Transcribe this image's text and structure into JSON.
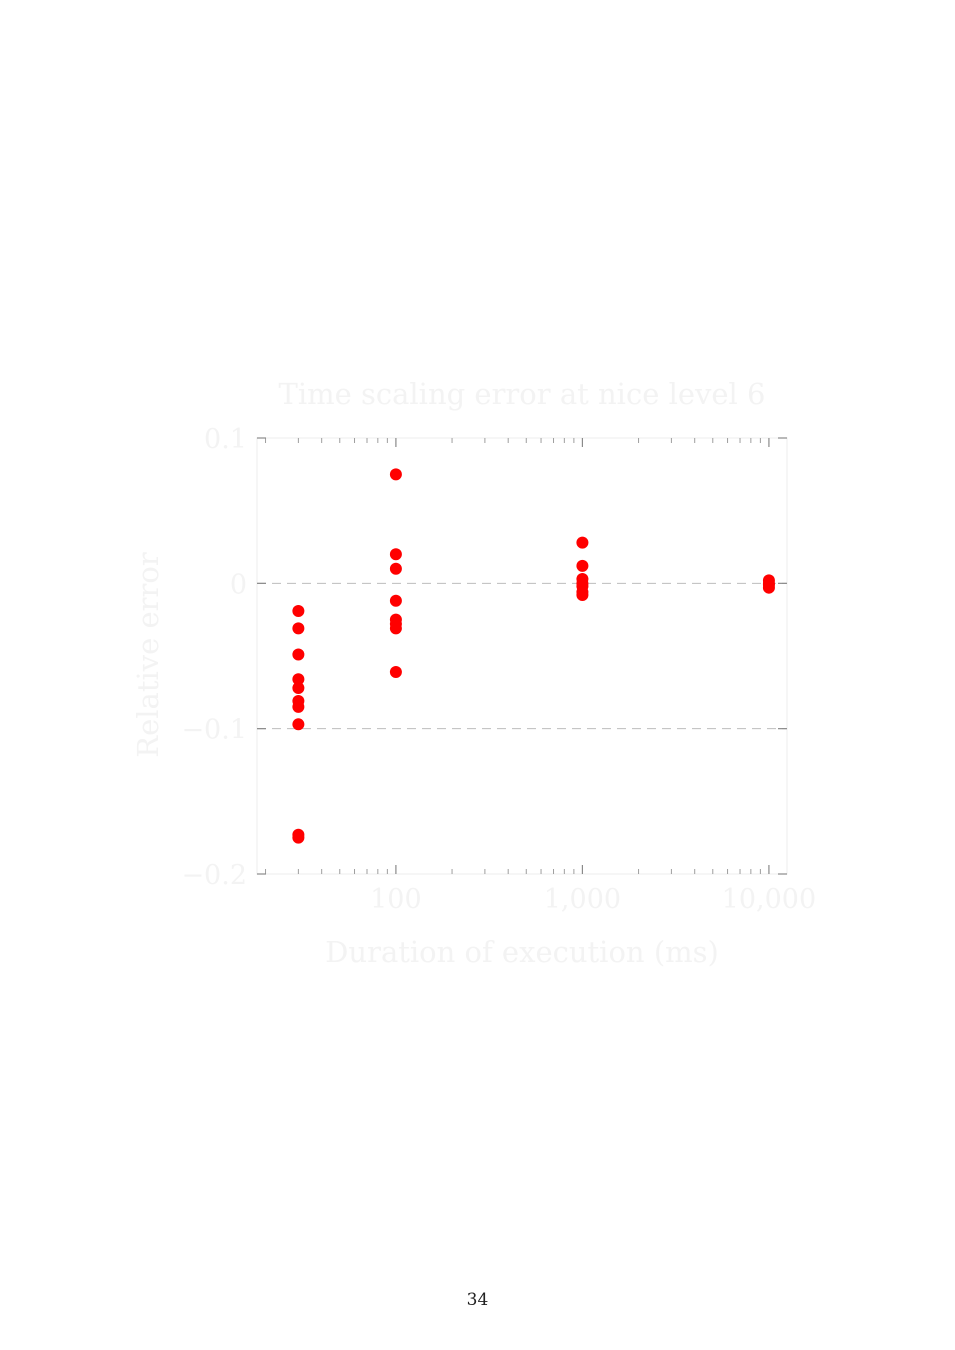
{
  "page": {
    "number": "34"
  },
  "chart_data": {
    "type": "scatter",
    "title": "Time scaling error at nice level 6",
    "xlabel": "Duration of execution (ms)",
    "ylabel": "Relative error",
    "x_scale": "log",
    "xlim": [
      18,
      12500
    ],
    "ylim": [
      -0.2,
      0.1
    ],
    "x_ticks": [
      100,
      1000,
      10000
    ],
    "x_tick_labels": [
      "100",
      "1,000",
      "10,000"
    ],
    "y_ticks": [
      -0.2,
      -0.1,
      0,
      0.1
    ],
    "y_tick_labels": [
      "−0.2",
      "−0.1",
      "0",
      "0.1"
    ],
    "grid": {
      "y_major_dashed": true,
      "x": false
    },
    "legend": "none",
    "marker_color": "#ff0000",
    "series": [
      {
        "points": [
          [
            30,
            -0.019
          ],
          [
            30,
            -0.031
          ],
          [
            30,
            -0.049
          ],
          [
            30,
            -0.066
          ],
          [
            30,
            -0.072
          ],
          [
            30,
            -0.081
          ],
          [
            30,
            -0.085
          ],
          [
            30,
            -0.097
          ],
          [
            30,
            -0.173
          ],
          [
            30,
            -0.175
          ],
          [
            100,
            0.075
          ],
          [
            100,
            0.02
          ],
          [
            100,
            0.01
          ],
          [
            100,
            -0.012
          ],
          [
            100,
            -0.025
          ],
          [
            100,
            -0.028
          ],
          [
            100,
            -0.031
          ],
          [
            100,
            -0.061
          ],
          [
            1000,
            0.028
          ],
          [
            1000,
            0.012
          ],
          [
            1000,
            0.003
          ],
          [
            1000,
            0.0
          ],
          [
            1000,
            -0.002
          ],
          [
            1000,
            -0.006
          ],
          [
            1000,
            -0.008
          ],
          [
            10000,
            0.002
          ],
          [
            10000,
            0.0
          ],
          [
            10000,
            -0.001
          ],
          [
            10000,
            -0.003
          ]
        ]
      }
    ]
  }
}
